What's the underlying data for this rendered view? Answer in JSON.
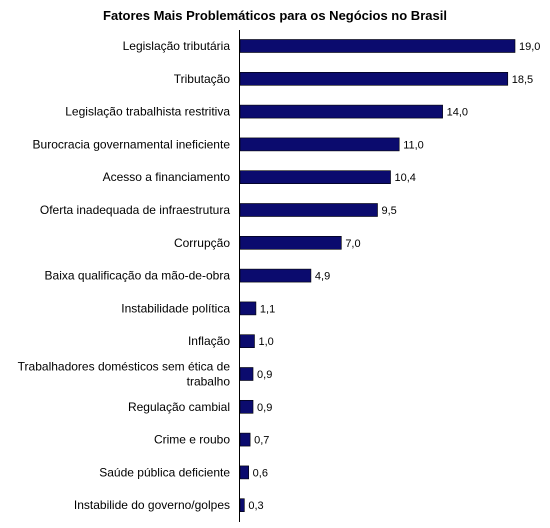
{
  "chart_data": {
    "type": "bar",
    "orientation": "horizontal",
    "title": "Fatores Mais Problemáticos para os Negócios no Brasil",
    "categories": [
      "Legislação tributária",
      "Tributação",
      "Legislação trabalhista restritiva",
      "Burocracia governamental ineficiente",
      "Acesso a financiamento",
      "Oferta inadequada de infraestrutura",
      "Corrupção",
      "Baixa qualificação da mão-de-obra",
      "Instabilidade política",
      "Inflação",
      "Trabalhadores domésticos sem ética de trabalho",
      "Regulação cambial",
      "Crime e roubo",
      "Saúde pública deficiente",
      "Instabilide do governo/golpes"
    ],
    "values": [
      19.0,
      18.5,
      14.0,
      11.0,
      10.4,
      9.5,
      7.0,
      4.9,
      1.1,
      1.0,
      0.9,
      0.9,
      0.7,
      0.6,
      0.3
    ],
    "value_labels": [
      "19,0",
      "18,5",
      "14,0",
      "11,0",
      "10,4",
      "9,5",
      "7,0",
      "4,9",
      "1,1",
      "1,0",
      "0,9",
      "0,9",
      "0,7",
      "0,6",
      "0,3"
    ],
    "xlim": [
      0,
      19.0
    ],
    "grid": false,
    "legend": "none",
    "bar_color": "#0b0b6e"
  }
}
